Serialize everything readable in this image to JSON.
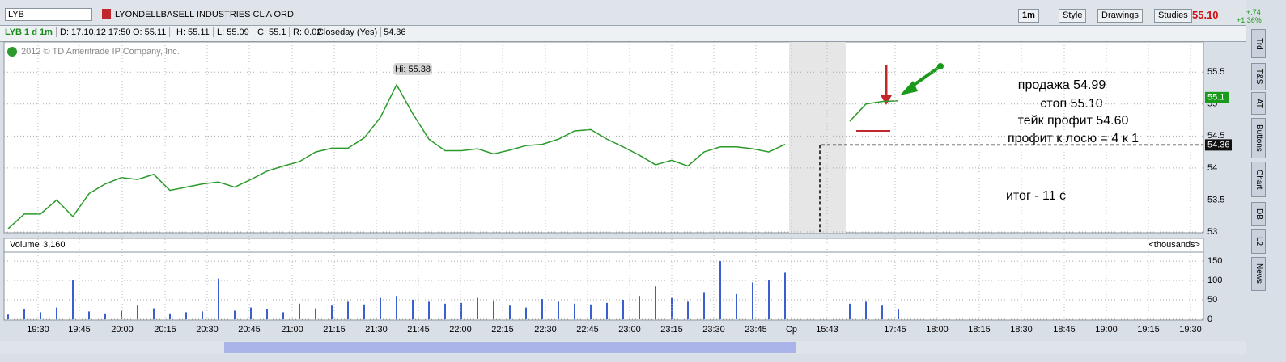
{
  "toolbar": {
    "symbol": "LYB",
    "company": "LYONDELLBASELL INDUSTRIES CL A ORD",
    "interval": "1m",
    "style": "Style",
    "drawings": "Drawings",
    "studies": "Studies",
    "last_price": "55.10",
    "change": "+.74",
    "change_pct": "+1.36%"
  },
  "info_bar": [
    "LYB 1 d 1m",
    "D: 17.10.12 17:50",
    "O: 55.11",
    "H: 55.11",
    "L: 55.09",
    "C: 55.1",
    "R: 0.02",
    "Closeday (Yes)",
    "54.36"
  ],
  "side_tabs": [
    "Trd",
    "T&S",
    "AT",
    "Buttons",
    "Chart",
    "DB",
    "L2",
    "News"
  ],
  "chart_data": {
    "type": "line",
    "copyright": "2012 © TD Ameritrade IP Company, Inc.",
    "hi_label": "Hi: 55.38",
    "annotations": [
      "продажа 54.99",
      "стоп 55.10",
      "тейк профит 54.60",
      "профит к лосю = 4 к 1",
      "итог - 11 с"
    ],
    "price": {
      "color": "#2a9a2a",
      "values": [
        53.05,
        53.28,
        53.28,
        53.5,
        53.24,
        53.6,
        53.75,
        53.85,
        53.82,
        53.9,
        53.65,
        53.7,
        53.75,
        53.78,
        53.7,
        53.82,
        53.95,
        54.03,
        54.1,
        54.25,
        54.31,
        54.31,
        54.47,
        54.79,
        55.3,
        54.85,
        54.45,
        54.27,
        54.27,
        54.3,
        54.22,
        54.28,
        54.35,
        54.37,
        54.45,
        54.58,
        54.6,
        54.45,
        54.33,
        54.2,
        54.05,
        54.12,
        54.03,
        54.25,
        54.33,
        54.33,
        54.3,
        54.25,
        54.37,
        null,
        null,
        null,
        54.73,
        55.0,
        55.04,
        55.05
      ],
      "ylim": [
        53,
        55.97
      ],
      "yticks": [
        53,
        53.5,
        54,
        54.5,
        55,
        55.5
      ],
      "last": {
        "value": 55.1,
        "label": "55.1"
      },
      "closeday": {
        "value": 54.36,
        "label": "54.36"
      }
    },
    "volume": {
      "title": "Volume",
      "current": "3,160",
      "unit": "<thousands>",
      "color": "#3a5fd0",
      "values": [
        12,
        25,
        18,
        30,
        100,
        20,
        15,
        22,
        35,
        28,
        15,
        18,
        20,
        105,
        22,
        30,
        25,
        18,
        40,
        28,
        35,
        45,
        38,
        55,
        60,
        50,
        45,
        40,
        42,
        55,
        48,
        35,
        30,
        52,
        45,
        40,
        38,
        42,
        50,
        60,
        85,
        55,
        45,
        70,
        150,
        65,
        95,
        100,
        120,
        null,
        null,
        null,
        40,
        45,
        35,
        25
      ],
      "ylim": [
        0,
        171
      ],
      "yticks": [
        0,
        50,
        100,
        150
      ]
    },
    "time_labels": [
      "19:30",
      "19:45",
      "20:00",
      "20:15",
      "20:30",
      "20:45",
      "21:00",
      "21:15",
      "21:30",
      "21:45",
      "22:00",
      "22:15",
      "22:30",
      "22:45",
      "23:00",
      "23:15",
      "23:30",
      "23:45",
      "Ср",
      "15:43",
      "17:45",
      "18:00",
      "18:15",
      "18:30",
      "18:45",
      "19:00",
      "19:15",
      "19:30"
    ]
  }
}
